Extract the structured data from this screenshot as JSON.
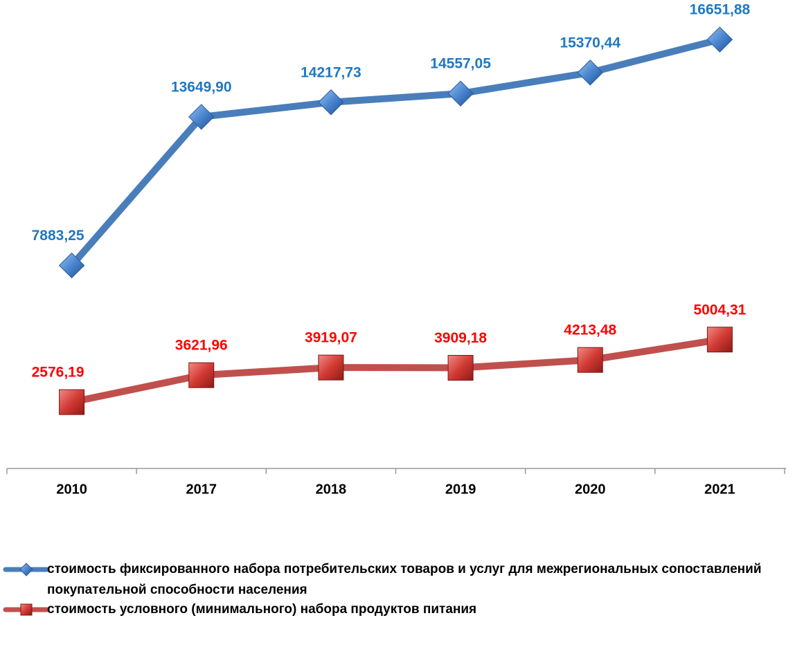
{
  "chart_data": {
    "type": "line",
    "categories": [
      "2010",
      "2017",
      "2018",
      "2019",
      "2020",
      "2021"
    ],
    "ylim": [
      0,
      18000
    ],
    "series": [
      {
        "name": "стоимость фиксированного набора потребительских товаров и услуг для межрегиональных сопоставлений покупательной способности населения",
        "color": "#4a7ebb",
        "label_color": "#1f78c1",
        "marker": "diamond",
        "values": [
          7883.25,
          13649.9,
          14217.73,
          14557.05,
          15370.44,
          16651.88
        ],
        "value_labels": [
          "7883,25",
          "13649,90",
          "14217,73",
          "14557,05",
          "15370,44",
          "16651,88"
        ]
      },
      {
        "name": "стоимость условного (минимального) набора продуктов питания",
        "color": "#c0504d",
        "label_color": "#ff0000",
        "marker": "square",
        "values": [
          2576.19,
          3621.96,
          3919.07,
          3909.18,
          4213.48,
          5004.31
        ],
        "value_labels": [
          "2576,19",
          "3621,96",
          "3919,07",
          "3909,18",
          "4213,48",
          "5004,31"
        ]
      }
    ]
  }
}
